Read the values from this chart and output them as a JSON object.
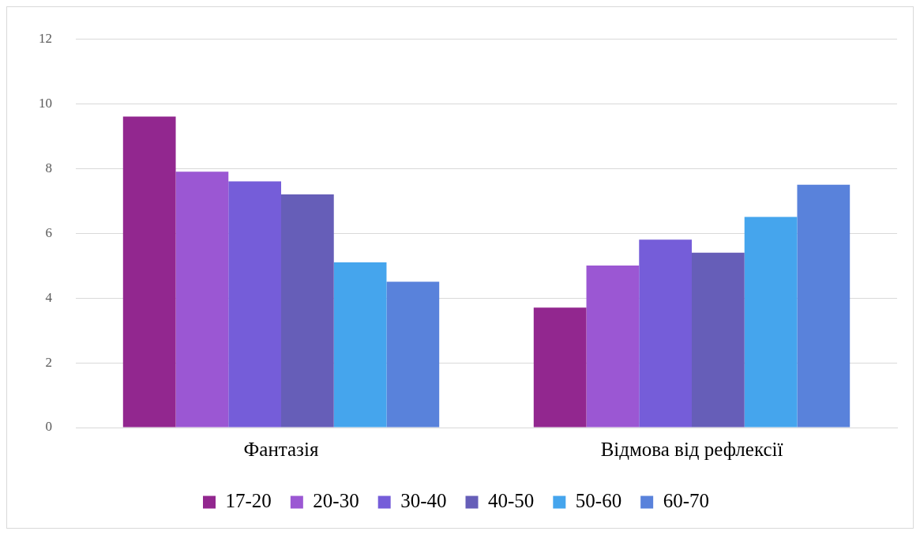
{
  "chart_data": {
    "type": "bar",
    "categories": [
      "Фантазія",
      "Відмова від рефлексії"
    ],
    "series": [
      {
        "name": "17-20",
        "color": "#92278f",
        "values": [
          9.6,
          3.7
        ]
      },
      {
        "name": "20-30",
        "color": "#9b57d3",
        "values": [
          7.9,
          5.0
        ]
      },
      {
        "name": "30-40",
        "color": "#755dd9",
        "values": [
          7.6,
          5.8
        ]
      },
      {
        "name": "40-50",
        "color": "#665eb8",
        "values": [
          7.2,
          5.4
        ]
      },
      {
        "name": "50-60",
        "color": "#45a5ed",
        "values": [
          5.1,
          6.5
        ]
      },
      {
        "name": "60-70",
        "color": "#5982db",
        "values": [
          4.5,
          7.5
        ]
      }
    ],
    "ylim": [
      0,
      12
    ],
    "yticks": [
      0,
      2,
      4,
      6,
      8,
      10,
      12
    ],
    "grid": "y",
    "legend": "bottom"
  }
}
